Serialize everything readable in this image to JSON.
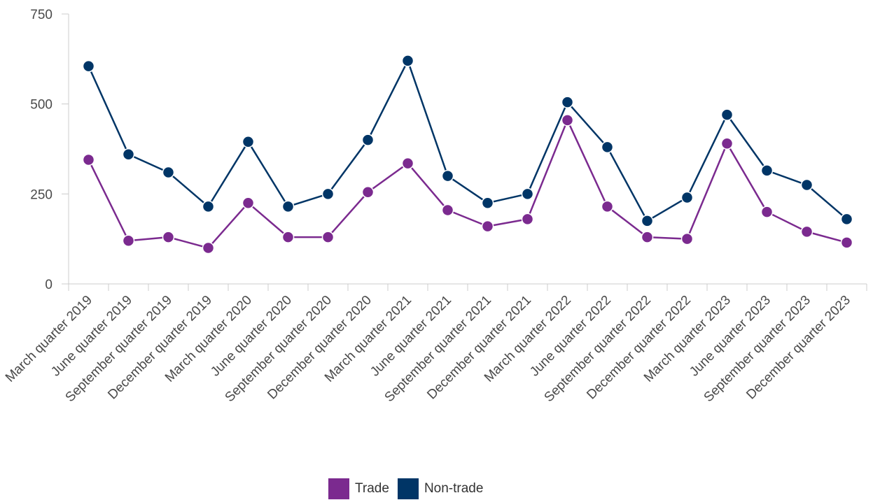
{
  "chart_data": {
    "type": "line",
    "categories": [
      "March quarter 2019",
      "June quarter 2019",
      "September quarter 2019",
      "December quarter 2019",
      "March quarter 2020",
      "June quarter 2020",
      "September quarter 2020",
      "December quarter 2020",
      "March quarter 2021",
      "June quarter 2021",
      "September quarter 2021",
      "December quarter 2021",
      "March quarter 2022",
      "June quarter 2022",
      "September quarter 2022",
      "December quarter 2022",
      "March quarter 2023",
      "June quarter 2023",
      "September quarter 2023",
      "December quarter 2023"
    ],
    "series": [
      {
        "name": "Trade",
        "color": "#7b2a8f",
        "values": [
          345,
          120,
          130,
          100,
          225,
          130,
          130,
          255,
          335,
          205,
          160,
          180,
          455,
          215,
          130,
          125,
          390,
          200,
          145,
          115
        ]
      },
      {
        "name": "Non-trade",
        "color": "#003566",
        "values": [
          605,
          360,
          310,
          215,
          395,
          215,
          250,
          400,
          620,
          300,
          225,
          250,
          505,
          380,
          175,
          240,
          470,
          315,
          275,
          180
        ]
      }
    ],
    "y_ticks": [
      0,
      250,
      500,
      750
    ],
    "ylim": [
      0,
      750
    ],
    "grid": false,
    "legend_position": "bottom-center"
  }
}
